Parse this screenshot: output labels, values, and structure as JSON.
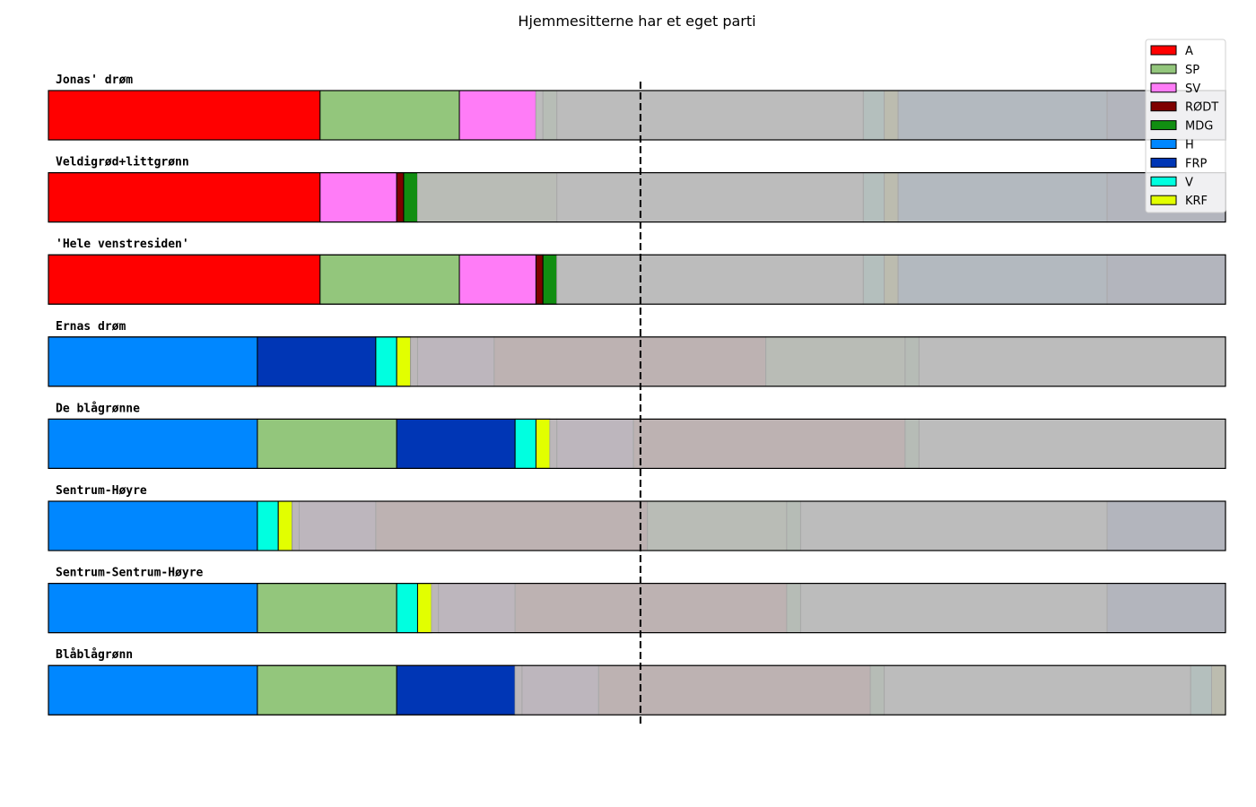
{
  "chart_data": {
    "type": "bar",
    "orientation": "horizontal",
    "stacked": true,
    "title": "Hjemmesitterne har et eget parti",
    "xlabel": "",
    "ylabel": "",
    "xlim": [
      0,
      169
    ],
    "majority_line": 85,
    "legend": {
      "placement": "top-right",
      "entries": [
        {
          "party": "A",
          "color": "#ff0000"
        },
        {
          "party": "SP",
          "color": "#93c67c"
        },
        {
          "party": "SV",
          "color": "#ff7cf7"
        },
        {
          "party": "RØDT",
          "color": "#7f0000"
        },
        {
          "party": "MDG",
          "color": "#118e11"
        },
        {
          "party": "H",
          "color": "#0087ff"
        },
        {
          "party": "FRP",
          "color": "#0036b5"
        },
        {
          "party": "V",
          "color": "#00ffe0"
        },
        {
          "party": "KRF",
          "color": "#e2ff00"
        }
      ]
    },
    "rows": [
      {
        "label": "Jonas' drøm",
        "segments": [
          {
            "party": "A",
            "value": 39,
            "color": "#ff0000",
            "in_coalition": true
          },
          {
            "party": "SP",
            "value": 20,
            "color": "#93c67c",
            "in_coalition": true
          },
          {
            "party": "SV",
            "value": 11,
            "color": "#ff7cf7",
            "in_coalition": true
          },
          {
            "value": 1,
            "color": "#bcbcbc",
            "in_coalition": false
          },
          {
            "value": 2,
            "color": "#b7bdb6",
            "in_coalition": false
          },
          {
            "value": 44,
            "color": "#bcbcbc",
            "in_coalition": false
          },
          {
            "value": 3,
            "color": "#b4bfbd",
            "in_coalition": false
          },
          {
            "value": 2,
            "color": "#bcbcaf",
            "in_coalition": false
          },
          {
            "value": 30,
            "color": "#b3b9bf",
            "in_coalition": false
          },
          {
            "value": 17,
            "color": "#b3b5bd",
            "in_coalition": false
          }
        ]
      },
      {
        "label": "Veldigrød+littgrønn",
        "segments": [
          {
            "party": "A",
            "value": 39,
            "color": "#ff0000",
            "in_coalition": true
          },
          {
            "party": "SV",
            "value": 11,
            "color": "#ff7cf7",
            "in_coalition": true
          },
          {
            "party": "RØDT",
            "value": 1,
            "color": "#7f0000",
            "in_coalition": true
          },
          {
            "party": "MDG",
            "value": 2,
            "color": "#118e11",
            "in_coalition": true
          },
          {
            "value": 20,
            "color": "#b9bcb6",
            "in_coalition": false
          },
          {
            "value": 44,
            "color": "#bcbcbc",
            "in_coalition": false
          },
          {
            "value": 3,
            "color": "#b4bfbd",
            "in_coalition": false
          },
          {
            "value": 2,
            "color": "#bcbcaf",
            "in_coalition": false
          },
          {
            "value": 30,
            "color": "#b3b9bf",
            "in_coalition": false
          },
          {
            "value": 17,
            "color": "#b3b5bd",
            "in_coalition": false
          }
        ]
      },
      {
        "label": "'Hele venstresiden'",
        "segments": [
          {
            "party": "A",
            "value": 39,
            "color": "#ff0000",
            "in_coalition": true
          },
          {
            "party": "SP",
            "value": 20,
            "color": "#93c67c",
            "in_coalition": true
          },
          {
            "party": "SV",
            "value": 11,
            "color": "#ff7cf7",
            "in_coalition": true
          },
          {
            "party": "RØDT",
            "value": 1,
            "color": "#7f0000",
            "in_coalition": true
          },
          {
            "party": "MDG",
            "value": 2,
            "color": "#118e11",
            "in_coalition": true
          },
          {
            "value": 44,
            "color": "#bcbcbc",
            "in_coalition": false
          },
          {
            "value": 3,
            "color": "#b4bfbd",
            "in_coalition": false
          },
          {
            "value": 2,
            "color": "#bcbcaf",
            "in_coalition": false
          },
          {
            "value": 30,
            "color": "#b3b9bf",
            "in_coalition": false
          },
          {
            "value": 17,
            "color": "#b3b5bd",
            "in_coalition": false
          }
        ]
      },
      {
        "label": "Ernas drøm",
        "segments": [
          {
            "party": "H",
            "value": 30,
            "color": "#0087ff",
            "in_coalition": true
          },
          {
            "party": "FRP",
            "value": 17,
            "color": "#0036b5",
            "in_coalition": true
          },
          {
            "party": "V",
            "value": 3,
            "color": "#00ffe0",
            "in_coalition": true
          },
          {
            "party": "KRF",
            "value": 2,
            "color": "#e2ff00",
            "in_coalition": true
          },
          {
            "value": 1,
            "color": "#bcb7ba",
            "in_coalition": false
          },
          {
            "value": 11,
            "color": "#bdb6bd",
            "in_coalition": false
          },
          {
            "value": 39,
            "color": "#bdb2b2",
            "in_coalition": false
          },
          {
            "value": 20,
            "color": "#b9bcb6",
            "in_coalition": false
          },
          {
            "value": 2,
            "color": "#b6bcb6",
            "in_coalition": false
          },
          {
            "value": 44,
            "color": "#bcbcbc",
            "in_coalition": false
          }
        ]
      },
      {
        "label": "De blågrønne",
        "segments": [
          {
            "party": "H",
            "value": 30,
            "color": "#0087ff",
            "in_coalition": true
          },
          {
            "party": "SP",
            "value": 20,
            "color": "#93c67c",
            "in_coalition": true
          },
          {
            "party": "FRP",
            "value": 17,
            "color": "#0036b5",
            "in_coalition": true
          },
          {
            "party": "V",
            "value": 3,
            "color": "#00ffe0",
            "in_coalition": true
          },
          {
            "party": "KRF",
            "value": 2,
            "color": "#e2ff00",
            "in_coalition": true
          },
          {
            "value": 1,
            "color": "#bcb7ba",
            "in_coalition": false
          },
          {
            "value": 11,
            "color": "#bdb6bd",
            "in_coalition": false
          },
          {
            "value": 39,
            "color": "#bdb2b2",
            "in_coalition": false
          },
          {
            "value": 2,
            "color": "#b6bcb6",
            "in_coalition": false
          },
          {
            "value": 44,
            "color": "#bcbcbc",
            "in_coalition": false
          }
        ]
      },
      {
        "label": "Sentrum-Høyre",
        "segments": [
          {
            "party": "H",
            "value": 30,
            "color": "#0087ff",
            "in_coalition": true
          },
          {
            "party": "V",
            "value": 3,
            "color": "#00ffe0",
            "in_coalition": true
          },
          {
            "party": "KRF",
            "value": 2,
            "color": "#e2ff00",
            "in_coalition": true
          },
          {
            "value": 1,
            "color": "#bcb7ba",
            "in_coalition": false
          },
          {
            "value": 11,
            "color": "#bdb6bd",
            "in_coalition": false
          },
          {
            "value": 39,
            "color": "#bdb2b2",
            "in_coalition": false
          },
          {
            "value": 20,
            "color": "#b9bcb6",
            "in_coalition": false
          },
          {
            "value": 2,
            "color": "#b6bcb6",
            "in_coalition": false
          },
          {
            "value": 44,
            "color": "#bcbcbc",
            "in_coalition": false
          },
          {
            "value": 17,
            "color": "#b3b5bd",
            "in_coalition": false
          }
        ]
      },
      {
        "label": "Sentrum-Sentrum-Høyre",
        "segments": [
          {
            "party": "H",
            "value": 30,
            "color": "#0087ff",
            "in_coalition": true
          },
          {
            "party": "SP",
            "value": 20,
            "color": "#93c67c",
            "in_coalition": true
          },
          {
            "party": "V",
            "value": 3,
            "color": "#00ffe0",
            "in_coalition": true
          },
          {
            "party": "KRF",
            "value": 2,
            "color": "#e2ff00",
            "in_coalition": true
          },
          {
            "value": 1,
            "color": "#bcb7ba",
            "in_coalition": false
          },
          {
            "value": 11,
            "color": "#bdb6bd",
            "in_coalition": false
          },
          {
            "value": 39,
            "color": "#bdb2b2",
            "in_coalition": false
          },
          {
            "value": 2,
            "color": "#b6bcb6",
            "in_coalition": false
          },
          {
            "value": 44,
            "color": "#bcbcbc",
            "in_coalition": false
          },
          {
            "value": 17,
            "color": "#b3b5bd",
            "in_coalition": false
          }
        ]
      },
      {
        "label": "Blåblågrønn",
        "segments": [
          {
            "party": "H",
            "value": 30,
            "color": "#0087ff",
            "in_coalition": true
          },
          {
            "party": "SP",
            "value": 20,
            "color": "#93c67c",
            "in_coalition": true
          },
          {
            "party": "FRP",
            "value": 17,
            "color": "#0036b5",
            "in_coalition": true
          },
          {
            "value": 1,
            "color": "#bcb7ba",
            "in_coalition": false
          },
          {
            "value": 11,
            "color": "#bdb6bd",
            "in_coalition": false
          },
          {
            "value": 39,
            "color": "#bdb2b2",
            "in_coalition": false
          },
          {
            "value": 2,
            "color": "#b6bcb6",
            "in_coalition": false
          },
          {
            "value": 44,
            "color": "#bcbcbc",
            "in_coalition": false
          },
          {
            "value": 3,
            "color": "#b4bfbd",
            "in_coalition": false
          },
          {
            "value": 2,
            "color": "#bcbcaf",
            "in_coalition": false
          }
        ]
      }
    ]
  }
}
